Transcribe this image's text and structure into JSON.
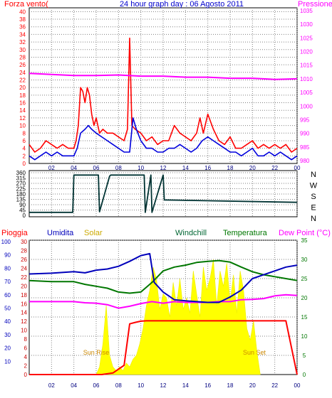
{
  "chart_data": [
    {
      "panel": "top",
      "type": "line",
      "title": "24 hour graph day : 06 Agosto 2011",
      "left_axis_label": "Forza vento(",
      "right_axis_label": "Pressione",
      "xticks": [
        "02",
        "04",
        "06",
        "08",
        "10",
        "12",
        "14",
        "16",
        "18",
        "20",
        "22",
        "00"
      ],
      "left_ticks": [
        0,
        2,
        4,
        6,
        8,
        10,
        12,
        14,
        16,
        18,
        20,
        22,
        24,
        26,
        28,
        30,
        32,
        34,
        36,
        38,
        40
      ],
      "right_ticks": [
        980,
        985,
        990,
        995,
        1000,
        1005,
        1010,
        1015,
        1020,
        1025,
        1030,
        1035
      ],
      "ylim_left": [
        0,
        41
      ],
      "ylim_right": [
        979,
        1036
      ],
      "xlim": [
        0,
        24
      ],
      "series": [
        {
          "role": "gust",
          "color": "#ff0000",
          "axis": "left",
          "x": [
            0,
            0.5,
            1,
            1.5,
            2,
            2.5,
            3,
            3.5,
            4,
            4.2,
            4.4,
            4.6,
            4.8,
            5,
            5.2,
            5.4,
            5.6,
            5.8,
            6,
            6.3,
            6.6,
            7,
            7.5,
            8,
            8.5,
            8.8,
            9,
            9.2,
            9.5,
            10,
            10.5,
            11,
            11.5,
            12,
            12.5,
            13,
            13.5,
            14,
            14.5,
            15,
            15.3,
            15.6,
            16,
            16.5,
            17,
            17.5,
            18,
            18.5,
            19,
            19.5,
            20,
            20.5,
            21,
            21.5,
            22,
            22.5,
            23,
            23.5,
            24
          ],
          "values": [
            5,
            3,
            4,
            6,
            5,
            4,
            5,
            4,
            4,
            6,
            10,
            20,
            19,
            16,
            20,
            18,
            13,
            10,
            12,
            8,
            9,
            8,
            8,
            7,
            6,
            9,
            33,
            10,
            9,
            8,
            6,
            7,
            5,
            6,
            6,
            10,
            8,
            7,
            6,
            8,
            12,
            8,
            13,
            9,
            6,
            5,
            7,
            4,
            4,
            5,
            6,
            4,
            5,
            4,
            5,
            4,
            5,
            3,
            4
          ]
        },
        {
          "role": "average",
          "color": "#0000dd",
          "axis": "left",
          "x": [
            0,
            0.5,
            1,
            1.5,
            2,
            2.5,
            3,
            3.5,
            4,
            4.3,
            4.6,
            5,
            5.3,
            5.6,
            6,
            6.5,
            7,
            7.5,
            8,
            8.5,
            9,
            9.3,
            9.6,
            10,
            10.5,
            11,
            11.5,
            12,
            12.5,
            13,
            13.5,
            14,
            14.5,
            15,
            15.5,
            16,
            16.5,
            17,
            17.5,
            18,
            18.5,
            19,
            19.5,
            20,
            20.5,
            21,
            21.5,
            22,
            22.5,
            23,
            23.5,
            24
          ],
          "values": [
            2,
            1,
            2,
            3,
            2,
            3,
            2,
            2,
            2,
            4,
            8,
            9,
            10,
            9,
            8,
            7,
            6,
            5,
            4,
            3,
            3,
            12,
            9,
            6,
            4,
            4,
            3,
            3,
            4,
            4,
            5,
            4,
            3,
            4,
            6,
            7,
            6,
            5,
            4,
            3,
            3,
            2,
            3,
            4,
            2,
            2,
            3,
            2,
            3,
            2,
            1,
            2
          ]
        },
        {
          "role": "pressure",
          "color": "#ff00ff",
          "axis": "right",
          "x": [
            0,
            2,
            4,
            6,
            8,
            10,
            12,
            14,
            16,
            18,
            20,
            22,
            24
          ],
          "values": [
            1012,
            1011.6,
            1011.2,
            1011.2,
            1011.4,
            1011,
            1011,
            1010.6,
            1010.6,
            1010.2,
            1010.2,
            1009.8,
            1010
          ]
        }
      ]
    },
    {
      "panel": "middle",
      "type": "line",
      "left_ticks": [
        0,
        45,
        90,
        135,
        180,
        225,
        270,
        315,
        360
      ],
      "compass_labels": [
        "N",
        "W",
        "S",
        "E",
        "N"
      ],
      "ylim": [
        0,
        360
      ],
      "xlim": [
        0,
        24
      ],
      "series": [
        {
          "role": "wind_direction",
          "color": "#003333",
          "x": [
            0,
            3.9,
            4.0,
            6.2,
            6.3,
            7.2,
            7.3,
            10.3,
            10.4,
            10.9,
            11.0,
            12.0,
            12.1,
            24
          ],
          "values": [
            25,
            25,
            340,
            340,
            30,
            330,
            340,
            340,
            25,
            340,
            25,
            340,
            130,
            110
          ]
        }
      ]
    },
    {
      "panel": "bottom",
      "type": "line",
      "legend": [
        "Pioggia",
        "Umidita",
        "Solar",
        "Windchill",
        "Temperatura",
        "Dew Point (°C)"
      ],
      "legend_colors": [
        "#ff0000",
        "#0000bb",
        "#ccaa00",
        "#006633",
        "#007700",
        "#ff00ff"
      ],
      "xticks": [
        "02",
        "04",
        "06",
        "08",
        "10",
        "12",
        "14",
        "16",
        "18",
        "20",
        "22",
        "00"
      ],
      "left_ticks_rain": [
        0,
        2,
        4,
        6,
        8,
        10,
        12,
        14,
        16,
        18,
        20,
        22,
        24,
        26,
        28,
        30
      ],
      "left_ticks_humidity": [
        10,
        20,
        30,
        40,
        50,
        60,
        70,
        80,
        90,
        100
      ],
      "right_ticks_temp": [
        0,
        5,
        10,
        15,
        20,
        25,
        30,
        35
      ],
      "ylim_temp": [
        0,
        35
      ],
      "xlim": [
        0,
        24
      ],
      "annotations": [
        "Sun Rise",
        "Sun Set"
      ],
      "series": [
        {
          "role": "temperatura",
          "color": "#007700",
          "axis": "temp",
          "x": [
            0,
            2,
            4,
            5,
            6,
            7,
            8,
            9,
            10,
            11,
            12,
            13,
            14,
            15,
            16,
            17,
            18,
            19,
            20,
            21,
            22,
            23,
            24
          ],
          "values": [
            24.5,
            24.2,
            24.2,
            23.5,
            23,
            22.5,
            21.5,
            21.2,
            21.5,
            24,
            27,
            28,
            28.5,
            29.2,
            29.5,
            29.7,
            29.3,
            28,
            26.8,
            26,
            25.5,
            25,
            24.5
          ]
        },
        {
          "role": "dew_point",
          "color": "#ff00ff",
          "axis": "temp",
          "x": [
            0,
            2,
            4,
            5,
            6,
            7,
            8,
            9,
            10,
            11,
            12,
            13,
            14,
            15,
            16,
            17,
            18,
            19,
            20,
            21,
            22,
            23,
            24
          ],
          "values": [
            19,
            19,
            19,
            18.7,
            18.6,
            18.2,
            17.3,
            17.8,
            18.5,
            19,
            18.6,
            19,
            18.8,
            18.8,
            18.8,
            19,
            19,
            19.5,
            19.6,
            19.8,
            20.5,
            20.8,
            20.6
          ]
        },
        {
          "role": "umidita",
          "color": "#0000bb",
          "axis": "temp",
          "x": [
            0,
            2,
            4,
            5,
            6,
            7,
            8,
            9,
            10,
            10.8,
            11.2,
            12,
            13,
            14,
            15,
            16,
            17,
            18,
            19,
            20,
            21,
            22,
            23,
            24
          ],
          "values": [
            26.2,
            26.4,
            26.8,
            26.5,
            27.2,
            27.5,
            28.2,
            29.5,
            31,
            31.5,
            24,
            21.5,
            19.5,
            19.2,
            19,
            18.8,
            18.8,
            20.2,
            22,
            25,
            26,
            27,
            28,
            28.5
          ]
        },
        {
          "role": "windchill",
          "color": "#006633",
          "axis": "temp",
          "x": [
            0,
            24
          ],
          "values": [
            24.5,
            24.5
          ]
        },
        {
          "role": "pioggia",
          "color": "#ff0000",
          "axis": "temp",
          "x": [
            0,
            6.5,
            7,
            7.5,
            8,
            8.5,
            9,
            9.5,
            10,
            10.5,
            11,
            12,
            13,
            14,
            15,
            16,
            17,
            18,
            19,
            20,
            21,
            22,
            23,
            24
          ],
          "values": [
            0,
            0,
            0.2,
            0.4,
            1.4,
            2.4,
            13.2,
            13.6,
            13.9,
            14,
            14,
            14,
            14,
            14,
            14,
            14,
            14,
            14,
            14,
            14,
            14,
            14,
            14,
            0
          ]
        },
        {
          "role": "solar",
          "color": "#ffff00",
          "axis": "temp",
          "x": [
            6,
            6.3,
            6.6,
            6.9,
            7.2,
            7.5,
            7.8,
            8.1,
            8.4,
            8.7,
            9,
            9.3,
            9.6,
            9.9,
            10.2,
            10.5,
            10.8,
            11.1,
            11.4,
            11.7,
            12,
            12.3,
            12.6,
            12.9,
            13.2,
            13.5,
            13.8,
            14.1,
            14.4,
            14.7,
            15,
            15.3,
            15.6,
            15.9,
            16.2,
            16.5,
            16.8,
            17.1,
            17.4,
            17.7,
            18,
            18.3,
            18.6,
            18.9,
            19.2,
            19.5,
            19.8,
            20.1,
            20.4,
            20.7
          ],
          "values": [
            0,
            2,
            8,
            18,
            5,
            2,
            1,
            2,
            1,
            3,
            2,
            4,
            5,
            8,
            12,
            18,
            22,
            28,
            25,
            17,
            21,
            20,
            15,
            24,
            18,
            25,
            17,
            20,
            16,
            27,
            21,
            15,
            28,
            22,
            25,
            30,
            18,
            27,
            23,
            29,
            19,
            26,
            16,
            27,
            22,
            12,
            9,
            14,
            6,
            0
          ]
        }
      ]
    }
  ]
}
